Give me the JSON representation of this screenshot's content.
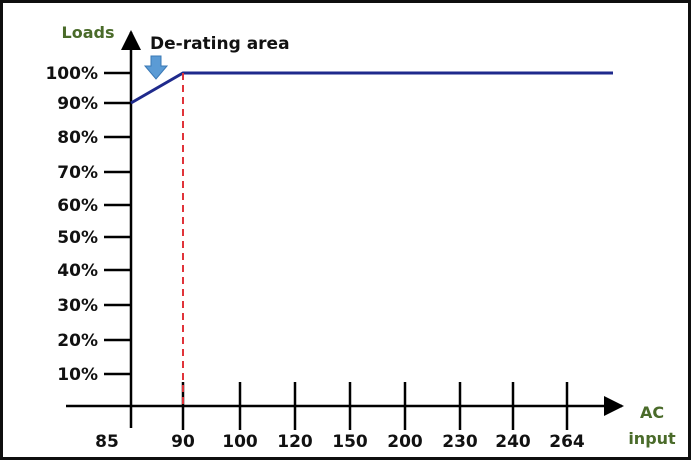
{
  "chart_data": {
    "type": "line",
    "title": "",
    "ylabel": "Loads",
    "xlabel_lines": [
      "AC",
      "input"
    ],
    "x_tick_labels": [
      "85",
      "90",
      "100",
      "120",
      "150",
      "200",
      "230",
      "240",
      "264"
    ],
    "y_tick_labels": [
      "10%",
      "20%",
      "30%",
      "40%",
      "50%",
      "60%",
      "70%",
      "80%",
      "90%",
      "100%"
    ],
    "series": [
      {
        "x": [
          "85",
          "90",
          "264+"
        ],
        "y": [
          90,
          100,
          100
        ],
        "color": "#1f2a8c"
      }
    ],
    "reference_line": {
      "x": "90",
      "style": "dashed",
      "color": "#e0343a"
    },
    "annotation": {
      "text": "De-rating area",
      "target_x_between": [
        "85",
        "90"
      ],
      "arrow_color": "#5b9bd5"
    },
    "axis_title_color": "#4a6b2a",
    "grid": false,
    "legend": "none"
  }
}
